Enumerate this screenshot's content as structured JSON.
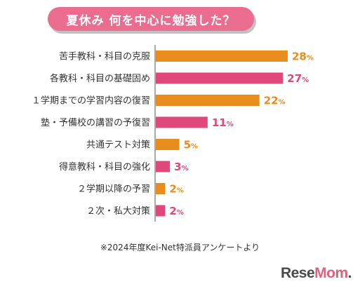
{
  "title": "夏休み 何を中心に勉強した？",
  "footnote": "※2024年度Kei-Net特派員アンケートより",
  "brand": {
    "name_main": "Rese",
    "name_accent": "Mom",
    "name_end": "."
  },
  "colors": {
    "orange": "#e98b1d",
    "pink": "#e0477a",
    "title_bg": "#ea6c8f"
  },
  "chart_data": {
    "type": "bar",
    "orientation": "horizontal",
    "title": "夏休み 何を中心に勉強した？",
    "unit": "%",
    "categories": [
      "苦手教科・科目の克服",
      "各教科・科目の基礎固め",
      "１学期までの学習内容の復習",
      "塾・予備校の講習の予復習",
      "共通テスト対策",
      "得意教科・科目の強化",
      "２学期以降の予習",
      "２次・私大対策"
    ],
    "values": [
      28,
      27,
      22,
      11,
      5,
      3,
      2,
      2
    ],
    "bar_colors": [
      "#e98b1d",
      "#e0477a",
      "#e98b1d",
      "#e0477a",
      "#e98b1d",
      "#e0477a",
      "#e98b1d",
      "#e0477a"
    ],
    "xlim": [
      0,
      28
    ],
    "grid": false
  }
}
